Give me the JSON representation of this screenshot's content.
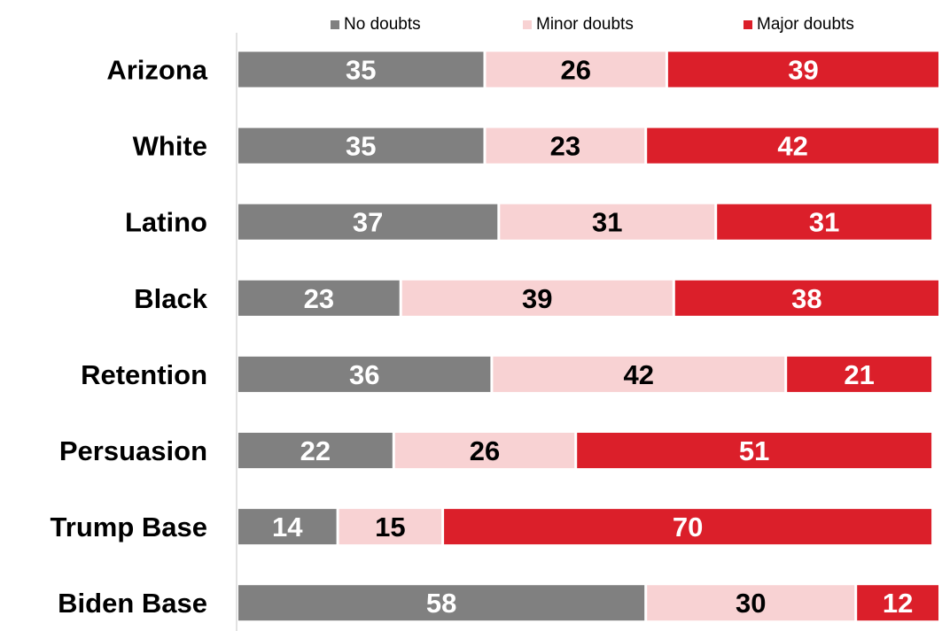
{
  "chart_data": {
    "type": "bar",
    "orientation": "horizontal",
    "stacked": true,
    "title": "",
    "xlabel": "",
    "ylabel": "",
    "xlim": [
      0,
      100
    ],
    "grid": false,
    "legend_position": "top",
    "categories": [
      "Arizona",
      "White",
      "Latino",
      "Black",
      "Retention",
      "Persuasion",
      "Trump Base",
      "Biden Base"
    ],
    "series": [
      {
        "name": "No doubts",
        "color": "#808080",
        "label_color": "#ffffff",
        "values": [
          35,
          35,
          37,
          23,
          36,
          22,
          14,
          58
        ]
      },
      {
        "name": "Minor doubts",
        "color": "#f8d2d3",
        "label_color": "#000000",
        "values": [
          26,
          23,
          31,
          39,
          42,
          26,
          15,
          30
        ]
      },
      {
        "name": "Major doubts",
        "color": "#db1f2a",
        "label_color": "#ffffff",
        "values": [
          39,
          42,
          31,
          38,
          21,
          51,
          70,
          12
        ]
      }
    ]
  }
}
